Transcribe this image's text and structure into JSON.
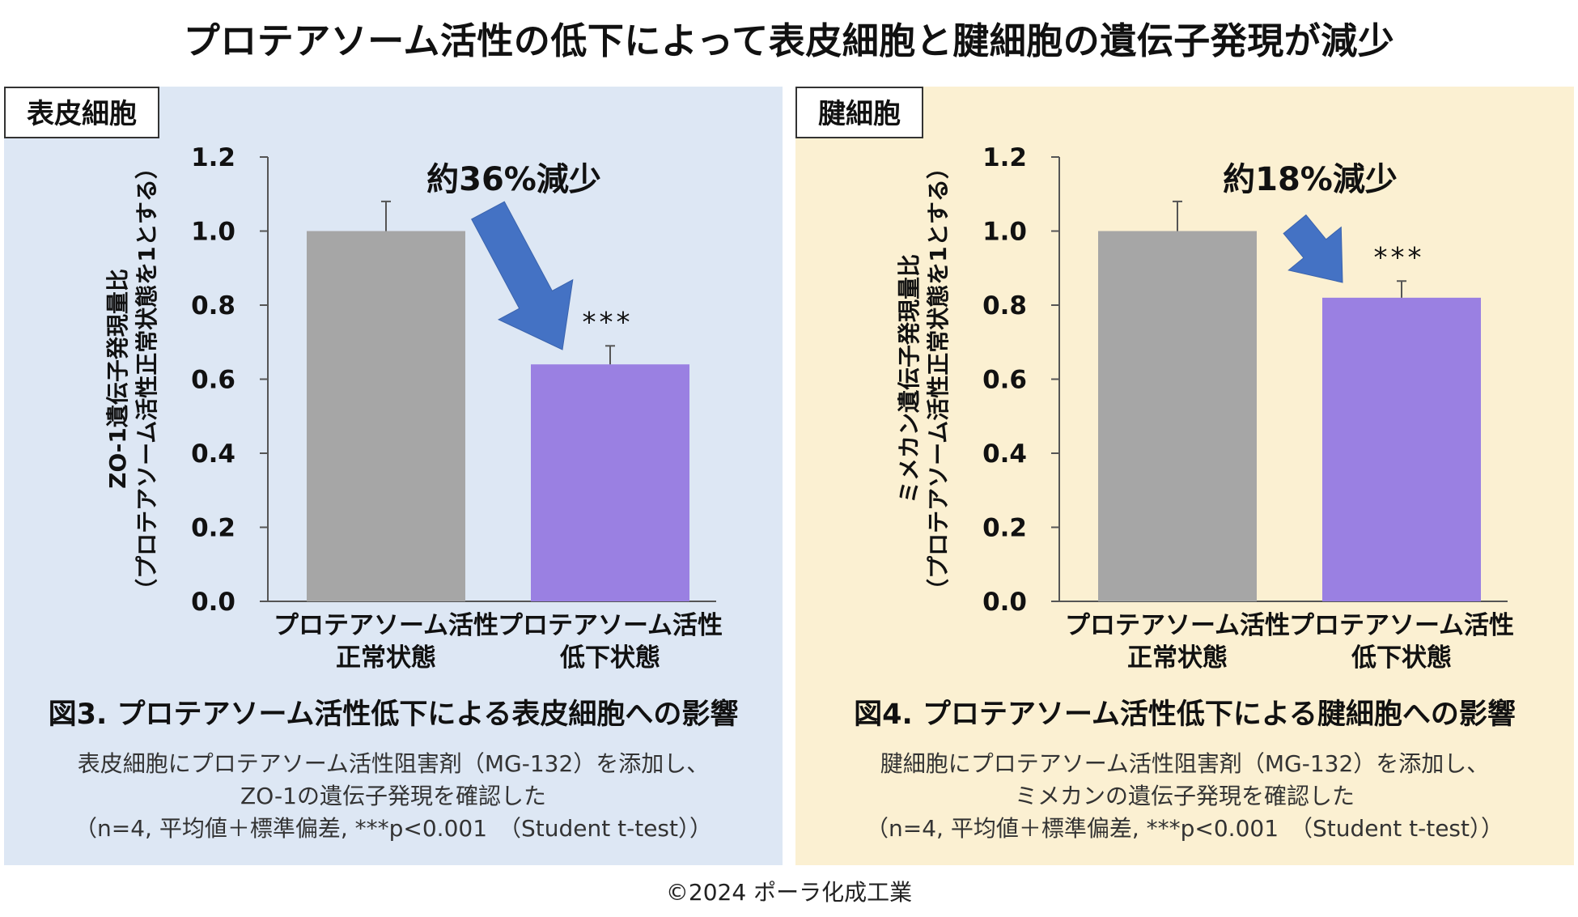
{
  "title": "プロテアソーム活性の低下によって表皮細胞と腱細胞の遺伝子発現が減少",
  "copyright": "©2024 ポーラ化成工業",
  "colors": {
    "normal": "#a6a6a6",
    "low": "#9a80e2",
    "arrow": "#4472c4",
    "left_bg": "#dde7f4",
    "right_bg": "#fbf0d2"
  },
  "panels": [
    {
      "tag": "表皮細胞",
      "caption_title": "図3. プロテアソーム活性低下による表皮細胞への影響",
      "note1": "表皮細胞にプロテアソーム活性阻害剤（MG-132）を添加し、",
      "note2": "ZO-1の遺伝子発現を確認した",
      "note3": "（n=4, 平均値＋標準偏差, ***p<0.001　（Student t-test））"
    },
    {
      "tag": "腱細胞",
      "caption_title": "図4. プロテアソーム活性低下による腱細胞への影響",
      "note1": "腱細胞にプロテアソーム活性阻害剤（MG-132）を添加し、",
      "note2": "ミメカンの遺伝子発現を確認した",
      "note3": "（n=4, 平均値＋標準偏差, ***p<0.001　（Student t-test））"
    }
  ],
  "chart_data": [
    {
      "type": "bar",
      "categories": [
        [
          "プロテアソーム活性",
          "正常状態"
        ],
        [
          "プロテアソーム活性",
          "低下状態"
        ]
      ],
      "values": [
        1.0,
        0.64
      ],
      "errors": [
        0.08,
        0.05
      ],
      "significance": [
        "",
        "***"
      ],
      "annotation": "約36%減少",
      "ylabel_line1": "ZO-1遺伝子発現量比",
      "ylabel_line2": "（プロテアソーム活性正常状態を1とする）",
      "ylim": [
        0,
        1.2
      ],
      "yticks": [
        "0.0",
        "0.2",
        "0.4",
        "0.6",
        "0.8",
        "1.0",
        "1.2"
      ]
    },
    {
      "type": "bar",
      "categories": [
        [
          "プロテアソーム活性",
          "正常状態"
        ],
        [
          "プロテアソーム活性",
          "低下状態"
        ]
      ],
      "values": [
        1.0,
        0.82
      ],
      "errors": [
        0.08,
        0.045
      ],
      "significance": [
        "",
        "***"
      ],
      "annotation": "約18%減少",
      "ylabel_line1": "ミメカン遺伝子発現量比",
      "ylabel_line2": "（プロテアソーム活性正常状態を1とする）",
      "ylim": [
        0,
        1.2
      ],
      "yticks": [
        "0.0",
        "0.2",
        "0.4",
        "0.6",
        "0.8",
        "1.0",
        "1.2"
      ]
    }
  ]
}
